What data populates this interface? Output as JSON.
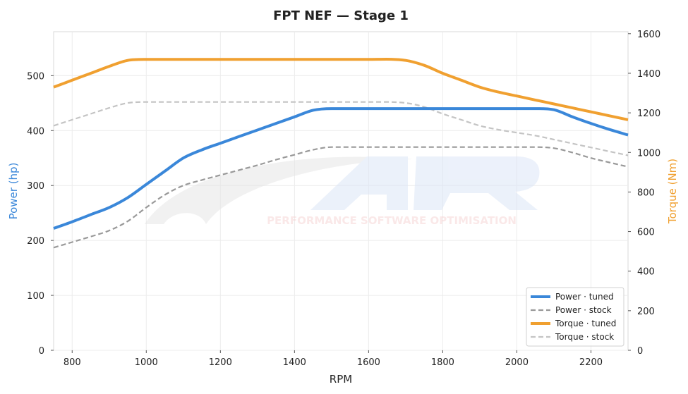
{
  "chart_data": {
    "type": "line",
    "title": "FPT NEF — Stage 1",
    "xlabel": "RPM",
    "ylabel_left": "Power (hp)",
    "ylabel_right": "Torque (Nm)",
    "xlim": [
      750,
      2300
    ],
    "ylim_left": [
      0,
      580
    ],
    "ylim_right": [
      0,
      1610
    ],
    "xticks": [
      800,
      1000,
      1200,
      1400,
      1600,
      1800,
      2000,
      2200
    ],
    "yticks_left": [
      0,
      100,
      200,
      300,
      400,
      500
    ],
    "yticks_right": [
      0,
      200,
      400,
      600,
      800,
      1000,
      1200,
      1400,
      1600
    ],
    "grid": true,
    "legend_position": "bottom-right",
    "watermark_text": "PERFORMANCE SOFTWARE OPTIMISATION",
    "series": [
      {
        "name": "Power · tuned",
        "axis": "left",
        "color": "#3a87d9",
        "style": "solid",
        "x": [
          750,
          800,
          850,
          900,
          950,
          1000,
          1050,
          1100,
          1150,
          1200,
          1250,
          1300,
          1350,
          1400,
          1450,
          1500,
          1550,
          1600,
          1650,
          1700,
          1750,
          1800,
          1850,
          1900,
          1950,
          2000,
          2050,
          2100,
          2150,
          2200,
          2250,
          2300
        ],
        "values": [
          222,
          234,
          247,
          260,
          278,
          302,
          326,
          350,
          365,
          377,
          389,
          401,
          413,
          425,
          437,
          440,
          440,
          440,
          440,
          440,
          440,
          440,
          440,
          440,
          440,
          440,
          440,
          438,
          425,
          413,
          402,
          392
        ]
      },
      {
        "name": "Power · stock",
        "axis": "left",
        "color": "#999999",
        "style": "dashed",
        "x": [
          750,
          800,
          850,
          900,
          950,
          1000,
          1050,
          1100,
          1150,
          1200,
          1250,
          1300,
          1350,
          1400,
          1450,
          1500,
          1550,
          1600,
          1650,
          1700,
          1750,
          1800,
          1850,
          1900,
          1950,
          2000,
          2050,
          2100,
          2150,
          2200,
          2250,
          2300
        ],
        "values": [
          187,
          197,
          207,
          218,
          235,
          260,
          283,
          300,
          310,
          319,
          328,
          337,
          347,
          356,
          365,
          370,
          370,
          370,
          370,
          370,
          370,
          370,
          370,
          370,
          370,
          370,
          370,
          368,
          360,
          350,
          342,
          334
        ]
      },
      {
        "name": "Torque · tuned",
        "axis": "right",
        "color": "#f0a030",
        "style": "solid",
        "x": [
          750,
          800,
          850,
          900,
          950,
          1000,
          1100,
          1200,
          1300,
          1400,
          1500,
          1600,
          1700,
          1750,
          1800,
          1850,
          1900,
          1950,
          2000,
          2050,
          2100,
          2150,
          2200,
          2250,
          2300
        ],
        "values": [
          1330,
          1365,
          1400,
          1435,
          1465,
          1470,
          1470,
          1470,
          1470,
          1470,
          1470,
          1470,
          1465,
          1440,
          1400,
          1365,
          1330,
          1305,
          1285,
          1265,
          1245,
          1225,
          1205,
          1185,
          1165
        ]
      },
      {
        "name": "Torque · stock",
        "axis": "right",
        "color": "#c4c4c4",
        "style": "dashed",
        "x": [
          750,
          800,
          850,
          900,
          950,
          1000,
          1100,
          1200,
          1300,
          1400,
          1500,
          1600,
          1700,
          1750,
          1800,
          1850,
          1900,
          1950,
          2000,
          2050,
          2100,
          2150,
          2200,
          2250,
          2300
        ],
        "values": [
          1135,
          1165,
          1195,
          1225,
          1250,
          1255,
          1255,
          1255,
          1255,
          1255,
          1255,
          1255,
          1250,
          1230,
          1195,
          1165,
          1135,
          1115,
          1100,
          1085,
          1065,
          1045,
          1025,
          1005,
          985
        ]
      }
    ]
  }
}
